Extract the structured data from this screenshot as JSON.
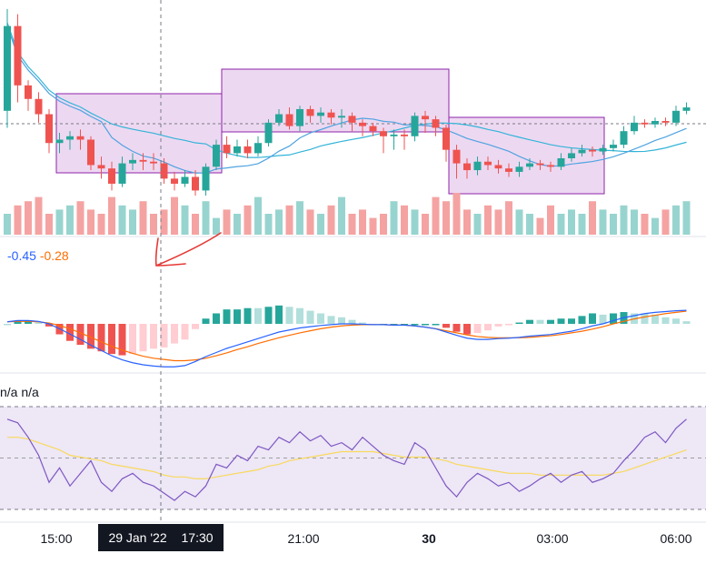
{
  "colors": {
    "up": "#26a69a",
    "down": "#ef5350",
    "volume_up": "#98d4cf",
    "volume_down": "#f4a3a2",
    "ma_fast": "#4fa3e0",
    "ma_slow": "#33b4d8",
    "box_fill": "#e1bee7",
    "box_stroke": "#8e24aa",
    "macd_line": "#2962ff",
    "signal_line": "#ff6d00",
    "rsi_line": "#7e57c2",
    "rsi_ma": "#f9d95c",
    "rsi_band": "#ede7f6",
    "annotation": "#e53935",
    "axis_text": "#131722"
  },
  "macd_legend": {
    "macd": "-0.45",
    "signal": "-0.28"
  },
  "rsi_legend": {
    "a": "n/a",
    "b": "n/a"
  },
  "x_axis": {
    "ticks": [
      {
        "label": "15:00",
        "bold": false
      },
      {
        "label": "21:00",
        "bold": false
      },
      {
        "label": "30",
        "bold": true
      },
      {
        "label": "03:00",
        "bold": false
      },
      {
        "label": "06:00",
        "bold": false
      }
    ],
    "crosshair_date": "29 Jan '22",
    "crosshair_time": "17:30"
  },
  "chart_data": {
    "type": "candlestick",
    "candles": [
      [
        0.45,
        0.95,
        0.35,
        1.05
      ],
      [
        0.95,
        0.6,
        0.5,
        1.02
      ],
      [
        0.6,
        0.52,
        0.45,
        0.63
      ],
      [
        0.52,
        0.43,
        0.38,
        0.56
      ],
      [
        0.43,
        0.26,
        0.2,
        0.46
      ],
      [
        0.26,
        0.28,
        0.2,
        0.32
      ],
      [
        0.28,
        0.3,
        0.22,
        0.33
      ],
      [
        0.3,
        0.28,
        0.22,
        0.34
      ],
      [
        0.28,
        0.13,
        0.1,
        0.3
      ],
      [
        0.13,
        0.11,
        0.05,
        0.18
      ],
      [
        0.11,
        0.02,
        -0.02,
        0.15
      ],
      [
        0.02,
        0.14,
        0.0,
        0.18
      ],
      [
        0.14,
        0.16,
        0.1,
        0.2
      ],
      [
        0.16,
        0.15,
        0.1,
        0.2
      ],
      [
        0.15,
        0.14,
        0.1,
        0.2
      ],
      [
        0.14,
        0.05,
        0.02,
        0.17
      ],
      [
        0.05,
        0.02,
        -0.02,
        0.09
      ],
      [
        0.02,
        0.06,
        0.0,
        0.1
      ],
      [
        0.06,
        -0.02,
        -0.05,
        0.1
      ],
      [
        -0.02,
        0.12,
        -0.05,
        0.14
      ],
      [
        0.12,
        0.25,
        0.1,
        0.28
      ],
      [
        0.25,
        0.2,
        0.17,
        0.3
      ],
      [
        0.2,
        0.24,
        0.18,
        0.28
      ],
      [
        0.24,
        0.2,
        0.17,
        0.28
      ],
      [
        0.2,
        0.26,
        0.18,
        0.3
      ],
      [
        0.26,
        0.38,
        0.24,
        0.4
      ],
      [
        0.38,
        0.43,
        0.36,
        0.46
      ],
      [
        0.43,
        0.36,
        0.34,
        0.47
      ],
      [
        0.36,
        0.46,
        0.33,
        0.48
      ],
      [
        0.46,
        0.42,
        0.38,
        0.48
      ],
      [
        0.42,
        0.44,
        0.38,
        0.47
      ],
      [
        0.44,
        0.41,
        0.37,
        0.46
      ],
      [
        0.41,
        0.42,
        0.35,
        0.46
      ],
      [
        0.42,
        0.38,
        0.33,
        0.44
      ],
      [
        0.38,
        0.36,
        0.3,
        0.4
      ],
      [
        0.36,
        0.33,
        0.3,
        0.38
      ],
      [
        0.33,
        0.3,
        0.2,
        0.35
      ],
      [
        0.3,
        0.31,
        0.22,
        0.34
      ],
      [
        0.31,
        0.3,
        0.22,
        0.34
      ],
      [
        0.3,
        0.42,
        0.27,
        0.44
      ],
      [
        0.42,
        0.4,
        0.32,
        0.45
      ],
      [
        0.4,
        0.35,
        0.3,
        0.42
      ],
      [
        0.35,
        0.22,
        0.15,
        0.37
      ],
      [
        0.22,
        0.14,
        0.05,
        0.25
      ],
      [
        0.14,
        0.1,
        0.05,
        0.17
      ],
      [
        0.1,
        0.15,
        0.07,
        0.18
      ],
      [
        0.15,
        0.13,
        0.1,
        0.18
      ],
      [
        0.13,
        0.11,
        0.08,
        0.16
      ],
      [
        0.11,
        0.09,
        0.06,
        0.14
      ],
      [
        0.09,
        0.12,
        0.06,
        0.15
      ],
      [
        0.12,
        0.14,
        0.1,
        0.17
      ],
      [
        0.14,
        0.13,
        0.1,
        0.16
      ],
      [
        0.13,
        0.12,
        0.09,
        0.15
      ],
      [
        0.12,
        0.17,
        0.1,
        0.2
      ],
      [
        0.17,
        0.2,
        0.15,
        0.23
      ],
      [
        0.2,
        0.22,
        0.18,
        0.25
      ],
      [
        0.22,
        0.21,
        0.18,
        0.24
      ],
      [
        0.21,
        0.23,
        0.19,
        0.25
      ],
      [
        0.23,
        0.25,
        0.21,
        0.28
      ],
      [
        0.25,
        0.33,
        0.23,
        0.36
      ],
      [
        0.33,
        0.38,
        0.31,
        0.42
      ],
      [
        0.38,
        0.37,
        0.35,
        0.4
      ],
      [
        0.37,
        0.39,
        0.35,
        0.41
      ],
      [
        0.39,
        0.38,
        0.36,
        0.41
      ],
      [
        0.38,
        0.45,
        0.36,
        0.48
      ],
      [
        0.45,
        0.47,
        0.43,
        0.5
      ]
    ],
    "volume": [
      5,
      7,
      8,
      9,
      5,
      6,
      7,
      8,
      6,
      5,
      9,
      7,
      6,
      8,
      5,
      6,
      9,
      7,
      5,
      8,
      4,
      6,
      5,
      7,
      9,
      5,
      6,
      7,
      8,
      6,
      5,
      7,
      9,
      5,
      6,
      4,
      5,
      8,
      7,
      6,
      5,
      9,
      8,
      10,
      6,
      5,
      7,
      6,
      8,
      6,
      5,
      4,
      7,
      5,
      6,
      5,
      8,
      6,
      5,
      7,
      6,
      5,
      4,
      6,
      7,
      8
    ],
    "macd": [
      0.05,
      0.08,
      0.08,
      0.06,
      0.0,
      -0.12,
      -0.25,
      -0.38,
      -0.52,
      -0.65,
      -0.78,
      -0.88,
      -0.95,
      -1.0,
      -1.03,
      -1.05,
      -1.05,
      -1.02,
      -0.92,
      -0.8,
      -0.7,
      -0.6,
      -0.52,
      -0.44,
      -0.36,
      -0.28,
      -0.2,
      -0.15,
      -0.1,
      -0.07,
      -0.04,
      -0.02,
      0.0,
      0.0,
      -0.01,
      -0.02,
      -0.02,
      -0.03,
      -0.03,
      -0.05,
      -0.08,
      -0.12,
      -0.2,
      -0.28,
      -0.35,
      -0.38,
      -0.38,
      -0.36,
      -0.35,
      -0.33,
      -0.3,
      -0.28,
      -0.26,
      -0.22,
      -0.18,
      -0.12,
      -0.05,
      0.0,
      0.08,
      0.15,
      0.2,
      0.25,
      0.28,
      0.3,
      0.32,
      0.33
    ],
    "signal": [
      0.05,
      0.06,
      0.06,
      0.05,
      0.02,
      -0.04,
      -0.12,
      -0.22,
      -0.33,
      -0.44,
      -0.55,
      -0.64,
      -0.72,
      -0.79,
      -0.84,
      -0.87,
      -0.9,
      -0.9,
      -0.88,
      -0.84,
      -0.78,
      -0.71,
      -0.63,
      -0.56,
      -0.48,
      -0.41,
      -0.34,
      -0.28,
      -0.22,
      -0.17,
      -0.12,
      -0.08,
      -0.05,
      -0.03,
      -0.02,
      -0.02,
      -0.02,
      -0.03,
      -0.03,
      -0.05,
      -0.08,
      -0.12,
      -0.17,
      -0.22,
      -0.27,
      -0.31,
      -0.33,
      -0.34,
      -0.34,
      -0.34,
      -0.33,
      -0.31,
      -0.29,
      -0.26,
      -0.22,
      -0.18,
      -0.13,
      -0.07,
      0.0,
      0.06,
      0.12,
      0.17,
      0.21,
      0.25,
      0.28,
      0.31
    ],
    "rsi": [
      65,
      63,
      55,
      45,
      30,
      38,
      28,
      35,
      42,
      30,
      25,
      32,
      35,
      30,
      28,
      24,
      20,
      25,
      22,
      28,
      40,
      38,
      45,
      42,
      50,
      48,
      55,
      52,
      58,
      53,
      56,
      50,
      52,
      48,
      55,
      50,
      45,
      42,
      40,
      52,
      48,
      38,
      28,
      22,
      30,
      35,
      32,
      28,
      30,
      25,
      28,
      32,
      35,
      30,
      34,
      36,
      30,
      32,
      35,
      42,
      48,
      55,
      58,
      52,
      60,
      65
    ],
    "rsi_ma": [
      55,
      55,
      54,
      52,
      50,
      48,
      45,
      44,
      43,
      42,
      40,
      39,
      38,
      37,
      36,
      34,
      33,
      33,
      32,
      32,
      33,
      34,
      35,
      36,
      37,
      39,
      40,
      42,
      43,
      44,
      45,
      46,
      47,
      47,
      47,
      47,
      46,
      45,
      44,
      44,
      44,
      43,
      42,
      40,
      39,
      38,
      37,
      36,
      35,
      35,
      35,
      34,
      34,
      34,
      34,
      34,
      34,
      34,
      35,
      36,
      38,
      40,
      42,
      44,
      46,
      48
    ]
  }
}
